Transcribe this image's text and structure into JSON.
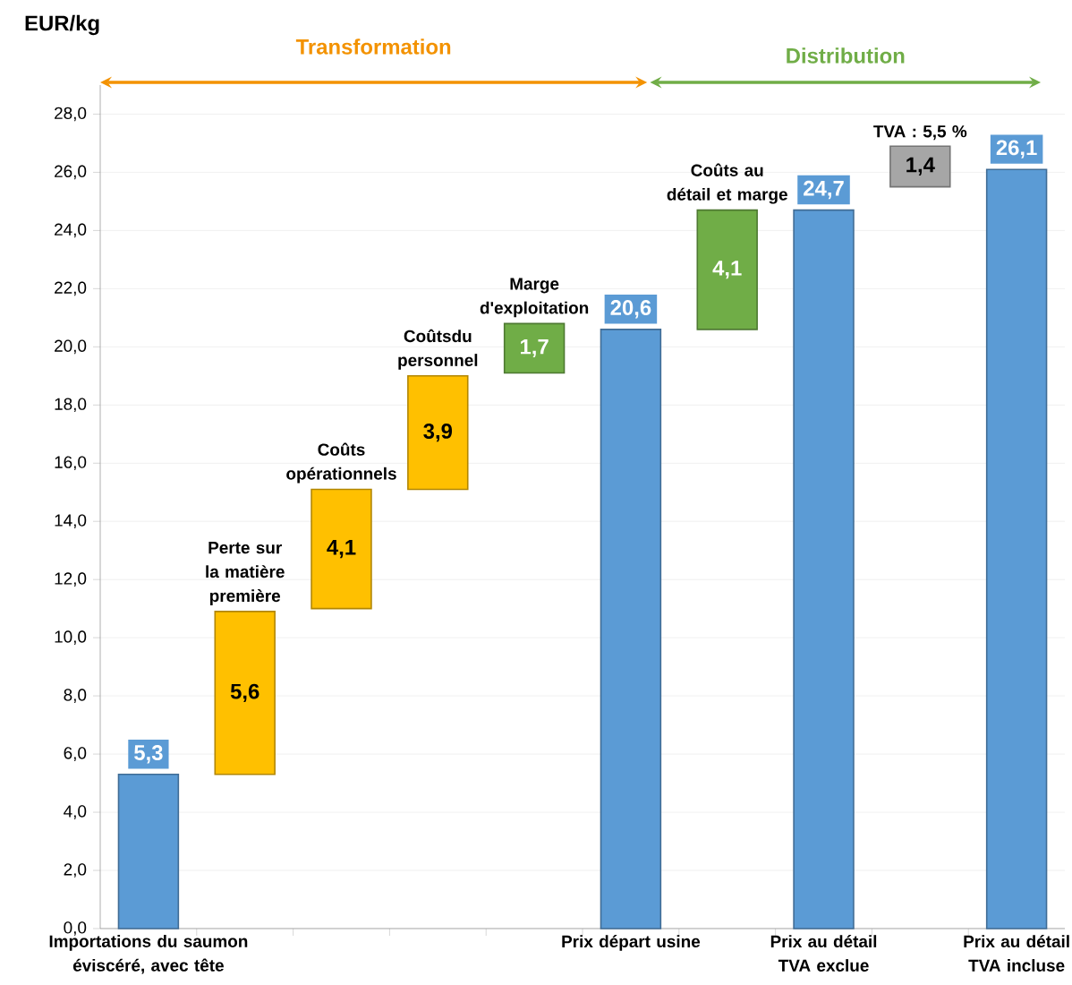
{
  "chart_data": {
    "type": "bar",
    "ylabel": "EUR/kg",
    "categories": [
      "Importations du saumon éviscéré, avec tête",
      "Perte sur la matière première",
      "Coûts opérationnels",
      "Coûtsdu personnel",
      "Marge d'exploitation",
      "Prix départ usine",
      "Coûts au détail et marge",
      "Prix au détail TVA exclue",
      "TVA : 5,5 %",
      "Prix au détail TVA incluse"
    ],
    "values": [
      5.3,
      5.6,
      4.1,
      3.9,
      1.7,
      20.6,
      4.1,
      24.7,
      1.4,
      26.1
    ],
    "base": [
      0,
      5.3,
      11.0,
      15.1,
      19.1,
      0,
      20.6,
      0,
      25.5,
      0
    ],
    "colors": [
      "#5b9bd5",
      "#ffc000",
      "#ffc000",
      "#ffc000",
      "#70ad47",
      "#5b9bd5",
      "#70ad47",
      "#5b9bd5",
      "#a6a6a6",
      "#5b9bd5"
    ],
    "value_labels": [
      "5,3",
      "5,6",
      "4,1",
      "3,9",
      "1,7",
      "20,6",
      "4,1",
      "24,7",
      "1,4",
      "26,1"
    ],
    "ylim": [
      0,
      29
    ],
    "yticks": [
      {
        "value": 0,
        "label": "0,0"
      },
      {
        "value": 2,
        "label": "2,0"
      },
      {
        "value": 4,
        "label": "4,0"
      },
      {
        "value": 6,
        "label": "6,0"
      },
      {
        "value": 8,
        "label": "8,0"
      },
      {
        "value": 10,
        "label": "10,0"
      },
      {
        "value": 12,
        "label": "12,0"
      },
      {
        "value": 14,
        "label": "14,0"
      },
      {
        "value": 16,
        "label": "16,0"
      },
      {
        "value": 18,
        "label": "18,0"
      },
      {
        "value": 20,
        "label": "20,0"
      },
      {
        "value": 22,
        "label": "22,0"
      },
      {
        "value": 24,
        "label": "24,0"
      },
      {
        "value": 26,
        "label": "26,0"
      },
      {
        "value": 28,
        "label": "28,0"
      }
    ],
    "grid": "y",
    "annotations": [
      "Transformation",
      "Distribution"
    ]
  }
}
